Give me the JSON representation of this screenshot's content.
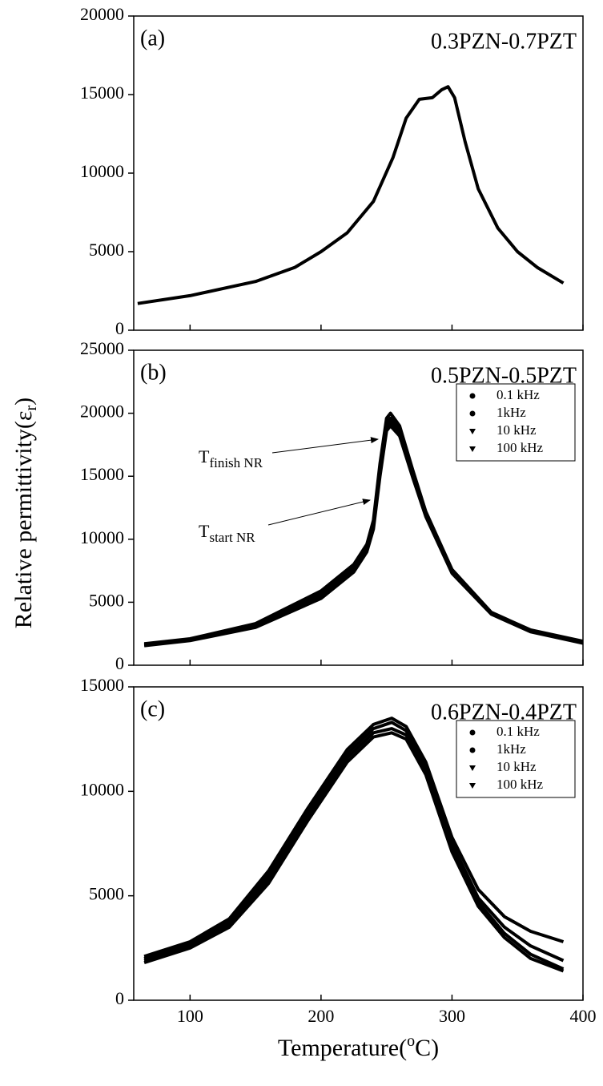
{
  "chart_data": [
    {
      "type": "line",
      "panel_label": "(a)",
      "title": "0.3PZN-0.7PZT",
      "ylim": [
        0,
        20000
      ],
      "yticks": [
        0,
        5000,
        10000,
        15000,
        20000
      ],
      "x": [
        60,
        100,
        150,
        180,
        200,
        220,
        240,
        255,
        265,
        275,
        285,
        292,
        297,
        302,
        310,
        320,
        335,
        350,
        365,
        385
      ],
      "series": [
        {
          "color": "#000000",
          "values": [
            1700,
            2200,
            3100,
            4000,
            5000,
            6200,
            8200,
            11000,
            13500,
            14700,
            14800,
            15300,
            15500,
            14800,
            12000,
            9000,
            6500,
            5000,
            4000,
            3000
          ]
        }
      ]
    },
    {
      "type": "line",
      "panel_label": "(b)",
      "title": "0.5PZN-0.5PZT",
      "ylabel": {
        "text": "Relative permittivity(ε",
        "sub": "r",
        "tail": ")"
      },
      "ylim": [
        0,
        25000
      ],
      "yticks": [
        0,
        5000,
        10000,
        15000,
        20000,
        25000
      ],
      "legend": "upper right",
      "annotations": [
        {
          "text": "T",
          "sub": "finish NR"
        },
        {
          "text": "T",
          "sub": "start NR"
        }
      ],
      "x": [
        65,
        100,
        150,
        200,
        225,
        235,
        240,
        245,
        250,
        253,
        260,
        270,
        280,
        300,
        330,
        360,
        400
      ],
      "series": [
        {
          "name": "0.1 kHz",
          "marker": "circle",
          "color": "#000000",
          "values": [
            1700,
            2100,
            3300,
            5900,
            8000,
            9600,
            11500,
            16000,
            19600,
            20000,
            19000,
            15500,
            12200,
            7600,
            4200,
            2800,
            1900
          ]
        },
        {
          "name": "1kHz",
          "marker": "circle",
          "color": "#000000",
          "values": [
            1650,
            2050,
            3200,
            5700,
            7800,
            9400,
            11200,
            15600,
            19200,
            19600,
            18700,
            15300,
            12100,
            7500,
            4150,
            2750,
            1850
          ]
        },
        {
          "name": "10 kHz",
          "marker": "triangle-down",
          "color": "#000000",
          "values": [
            1600,
            2000,
            3100,
            5500,
            7600,
            9200,
            11000,
            15300,
            18900,
            19300,
            18400,
            15100,
            11900,
            7400,
            4100,
            2700,
            1800
          ]
        },
        {
          "name": "100 kHz",
          "marker": "triangle-down",
          "color": "#000000",
          "values": [
            1550,
            1950,
            3000,
            5300,
            7400,
            9000,
            10800,
            15000,
            18600,
            19000,
            18200,
            14900,
            11800,
            7300,
            4050,
            2650,
            1750
          ]
        }
      ]
    },
    {
      "type": "line",
      "panel_label": "(c)",
      "title": "0.6PZN-0.4PZT",
      "xlabel": {
        "text": "Temperature(",
        "sup": "o",
        "tail": "C)"
      },
      "xlim": [
        57,
        400
      ],
      "xticks": [
        100,
        200,
        300,
        400
      ],
      "ylim": [
        0,
        15000
      ],
      "yticks": [
        0,
        5000,
        10000,
        15000
      ],
      "legend": "upper right",
      "x": [
        65,
        100,
        130,
        160,
        190,
        220,
        240,
        254,
        265,
        280,
        300,
        320,
        340,
        360,
        385
      ],
      "series": [
        {
          "name": "0.1 kHz",
          "marker": "circle",
          "color": "#000000",
          "values": [
            2100,
            2800,
            3900,
            6200,
            9200,
            12000,
            13200,
            13500,
            13100,
            11400,
            7800,
            5300,
            4000,
            3300,
            2800
          ]
        },
        {
          "name": "1kHz",
          "marker": "circle",
          "color": "#000000",
          "values": [
            2000,
            2700,
            3800,
            6000,
            9000,
            11800,
            13000,
            13300,
            12900,
            11200,
            7500,
            4900,
            3500,
            2600,
            1900
          ]
        },
        {
          "name": "10 kHz",
          "marker": "triangle-down",
          "color": "#000000",
          "values": [
            1900,
            2600,
            3650,
            5800,
            8800,
            11600,
            12800,
            13000,
            12700,
            11000,
            7300,
            4700,
            3200,
            2200,
            1500
          ]
        },
        {
          "name": "100 kHz",
          "marker": "triangle-down",
          "color": "#000000",
          "values": [
            1800,
            2500,
            3500,
            5600,
            8600,
            11400,
            12600,
            12800,
            12500,
            10800,
            7100,
            4500,
            3000,
            2000,
            1400
          ]
        }
      ]
    }
  ]
}
